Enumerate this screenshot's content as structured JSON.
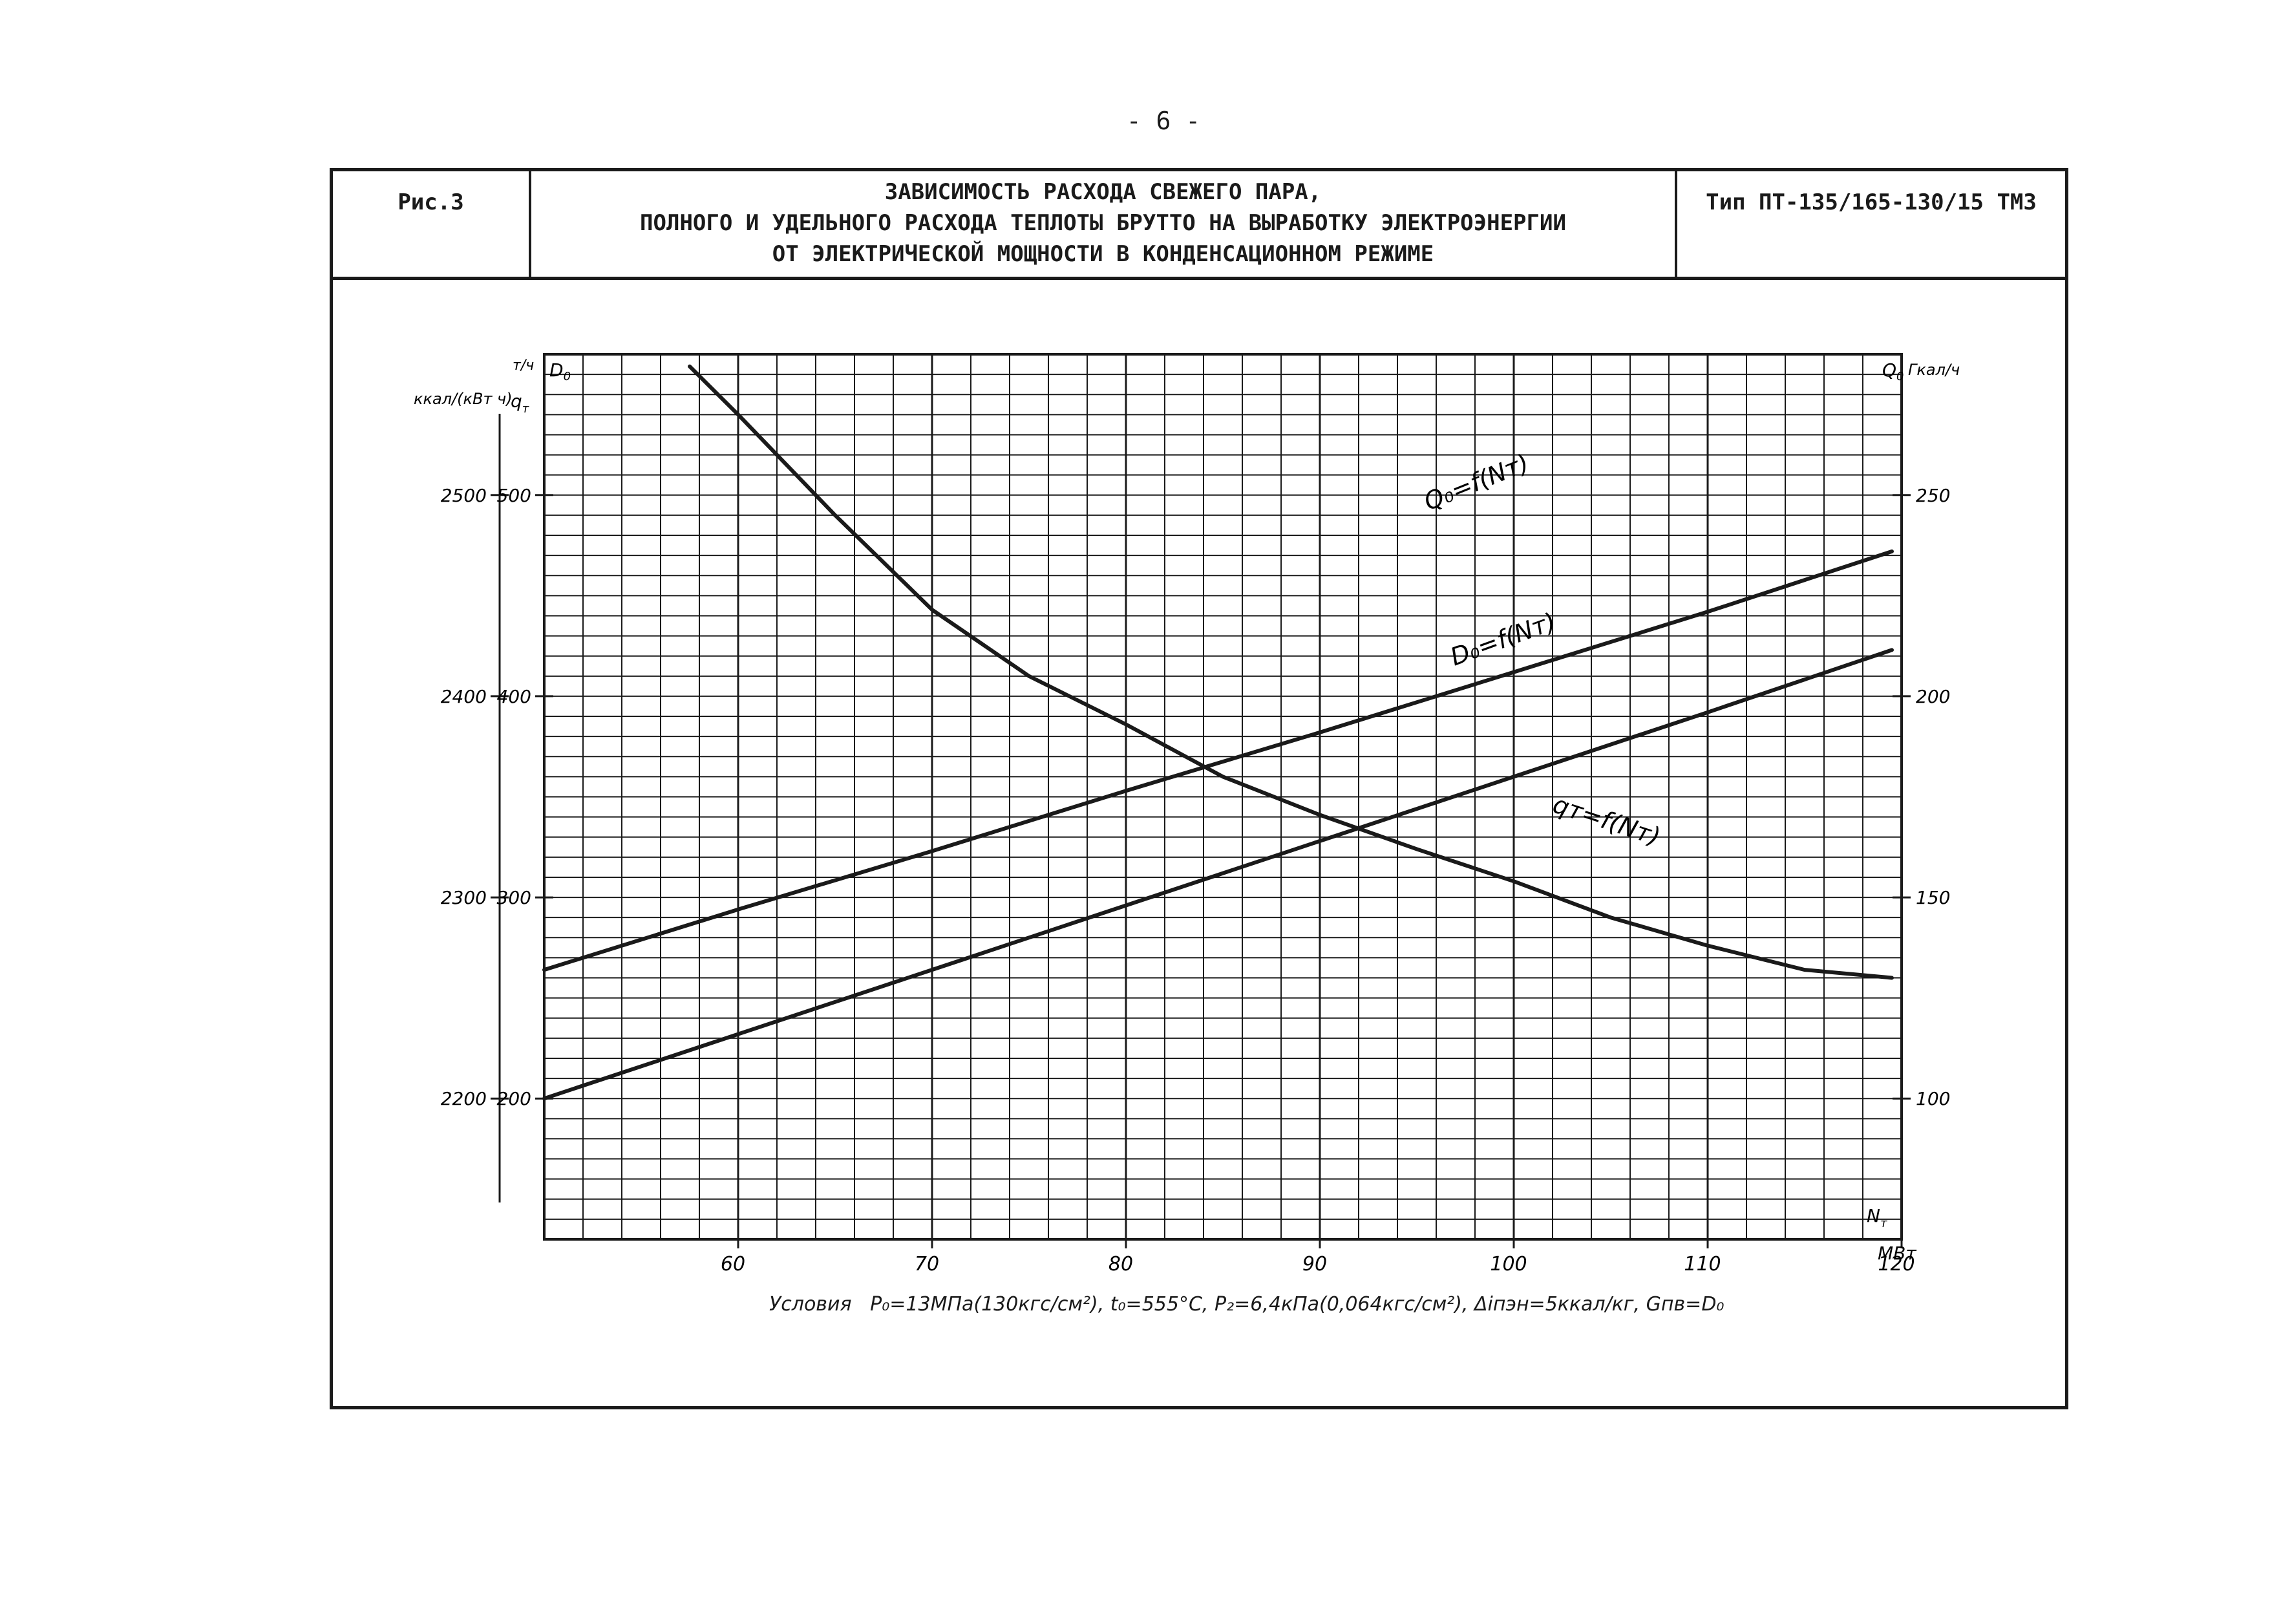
{
  "page_number": "- 6 -",
  "header": {
    "figure_label": "Рис.3",
    "title_lines": [
      "ЗАВИСИМОСТЬ РАСХОДА СВЕЖЕГО ПАРА,",
      "ПОЛНОГО И УДЕЛЬНОГО РАСХОДА ТЕПЛОТЫ БРУТТО НА ВЫРАБОТКУ ЭЛЕКТРОЭНЕРГИИ",
      "ОТ ЭЛЕКТРИЧЕСКОЙ МОЩНОСТИ В КОНДЕНСАЦИОННОМ РЕЖИМЕ"
    ],
    "type_label": "Тип ПТ-135/165-130/15 ТМЗ"
  },
  "axes": {
    "left_outer_unit": "ккал/(кВт ч)",
    "left_inner_unit": "т/ч",
    "left_inner_symbol": "D",
    "left_inner_symbol_sub": "0",
    "left_q_symbol": "q",
    "left_q_sub": "т",
    "right_symbol": "Q",
    "right_symbol_sub": "0",
    "right_unit": "Гкал/ч",
    "x_symbol": "N",
    "x_symbol_sub": "т",
    "x_unit": "МВт"
  },
  "curve_labels": {
    "Q0": "Q₀=f(Nт)",
    "D0": "D₀=f(Nт)",
    "qt": "qт=f(Nт)"
  },
  "conditions": {
    "prefix": "Условия",
    "text": "P₀=13МПа(130кгс/см²), t₀=555°C, P₂=6,4кПа(0,064кгс/см²), Δiпэн=5ккал/кг, Gпв=D₀"
  },
  "chart_data": {
    "type": "line",
    "x_axis": {
      "label": "Nт, МВт",
      "range": [
        50,
        120
      ],
      "ticks": [
        60,
        70,
        80,
        90,
        100,
        110,
        120
      ]
    },
    "y_axes": [
      {
        "name": "qт",
        "unit": "ккал/(кВт ч)",
        "range": [
          2130,
          2570
        ],
        "ticks": [
          2200,
          2300,
          2400,
          2500
        ]
      },
      {
        "name": "D0",
        "unit": "т/ч",
        "range": [
          130,
          570
        ],
        "ticks": [
          200,
          300,
          400,
          500
        ]
      },
      {
        "name": "Q0",
        "unit": "Гкал/ч",
        "range": [
          65,
          285
        ],
        "ticks": [
          100,
          150,
          200,
          250
        ]
      }
    ],
    "grid": true,
    "series": [
      {
        "name": "Q0=f(Nт)",
        "axis": "Q0",
        "x": [
          50,
          60,
          70,
          80,
          90,
          100,
          110,
          119.5
        ],
        "y": [
          132,
          147,
          161.5,
          176.5,
          191,
          206,
          221,
          236
        ]
      },
      {
        "name": "D0=f(Nт)",
        "axis": "D0",
        "x": [
          50,
          60,
          70,
          80,
          90,
          100,
          110,
          119.5
        ],
        "y": [
          200,
          232,
          264,
          296,
          328,
          360,
          392,
          423
        ]
      },
      {
        "name": "qт=f(Nт)",
        "axis": "qт",
        "x": [
          57.5,
          60,
          65,
          70,
          75,
          80,
          85,
          90,
          95,
          100,
          105,
          110,
          115,
          119.5
        ],
        "y": [
          2564,
          2540,
          2490,
          2443,
          2410,
          2386,
          2360,
          2341,
          2324,
          2308,
          2290,
          2276,
          2264,
          2260
        ]
      }
    ]
  },
  "colors": {
    "ink": "#1a1a1a",
    "paper": "#ffffff"
  }
}
